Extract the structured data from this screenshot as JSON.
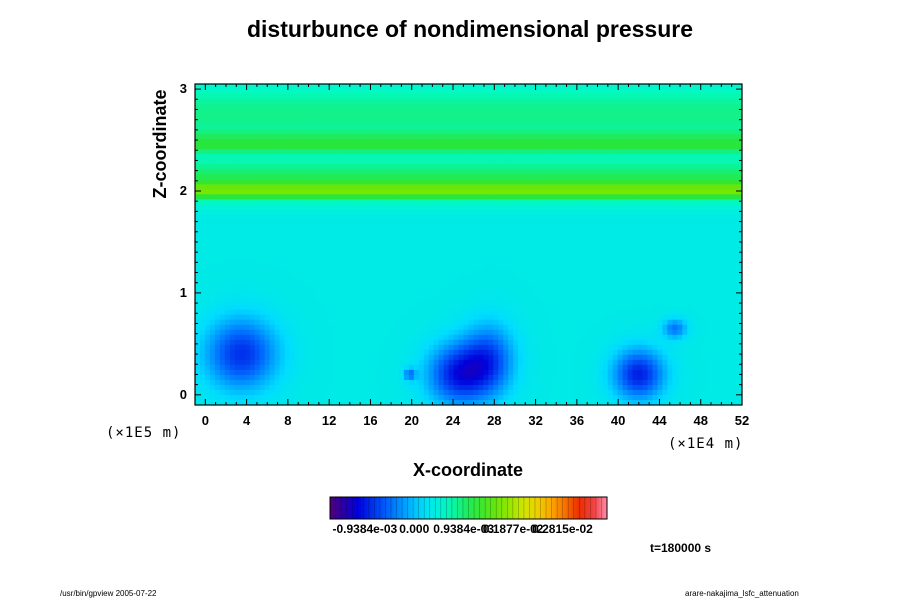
{
  "chart_data": {
    "type": "heatmap",
    "title": "disturbunce of nondimensional pressure",
    "xlabel": "X-coordinate",
    "ylabel": "Z-coordinate",
    "x_scale_label": "(×1E4 m)",
    "y_scale_label": "(×1E5 m)",
    "x_ticks": [
      "0",
      "4",
      "8",
      "12",
      "16",
      "20",
      "24",
      "28",
      "32",
      "36",
      "40",
      "44",
      "48",
      "52"
    ],
    "y_ticks": [
      "0",
      "1",
      "2",
      "3"
    ],
    "xlim": [
      -1,
      52
    ],
    "ylim": [
      -0.1,
      3.05
    ],
    "colorbar": {
      "min": -0.0016,
      "max": 0.00366,
      "tick_labels": [
        "-0.9384e-03",
        "0.000",
        "0.9384e-03",
        "0.1877e-02",
        "0.2815e-02"
      ],
      "tick_values": [
        -0.0009384,
        0,
        0.0009384,
        0.001877,
        0.002815
      ]
    },
    "field": {
      "background": 0.00035,
      "bands": [
        {
          "z": 2.0,
          "width": 0.07,
          "value": 0.0009
        },
        {
          "z": 2.1,
          "width": 0.2,
          "value": 0.0008
        },
        {
          "z": 2.45,
          "width": 0.08,
          "value": 0.0007
        },
        {
          "z": 2.55,
          "width": 0.05,
          "value": 0.0003
        },
        {
          "z": 2.75,
          "width": 0.3,
          "value": 0.0006
        }
      ],
      "blobs": [
        {
          "x": 3.5,
          "z": 0.4,
          "rx": 3.5,
          "rz": 0.35,
          "value": -0.0008
        },
        {
          "x": 24.5,
          "z": 0.2,
          "rx": 3.0,
          "rz": 0.3,
          "value": -0.0009
        },
        {
          "x": 27.5,
          "z": 0.35,
          "rx": 2.5,
          "rz": 0.35,
          "value": -0.0006
        },
        {
          "x": 42,
          "z": 0.2,
          "rx": 2.5,
          "rz": 0.25,
          "value": -0.0009
        },
        {
          "x": 45.5,
          "z": 0.65,
          "rx": 1.2,
          "rz": 0.1,
          "value": -0.0004
        },
        {
          "x": 19.8,
          "z": 0.2,
          "rx": 0.6,
          "rz": 0.06,
          "value": -0.0004
        }
      ]
    }
  },
  "time_label": "t=180000 s",
  "footer_left": "/usr/bin/gpview 2005-07-22",
  "footer_right": "arare-nakajima_lsfc_attenuation"
}
